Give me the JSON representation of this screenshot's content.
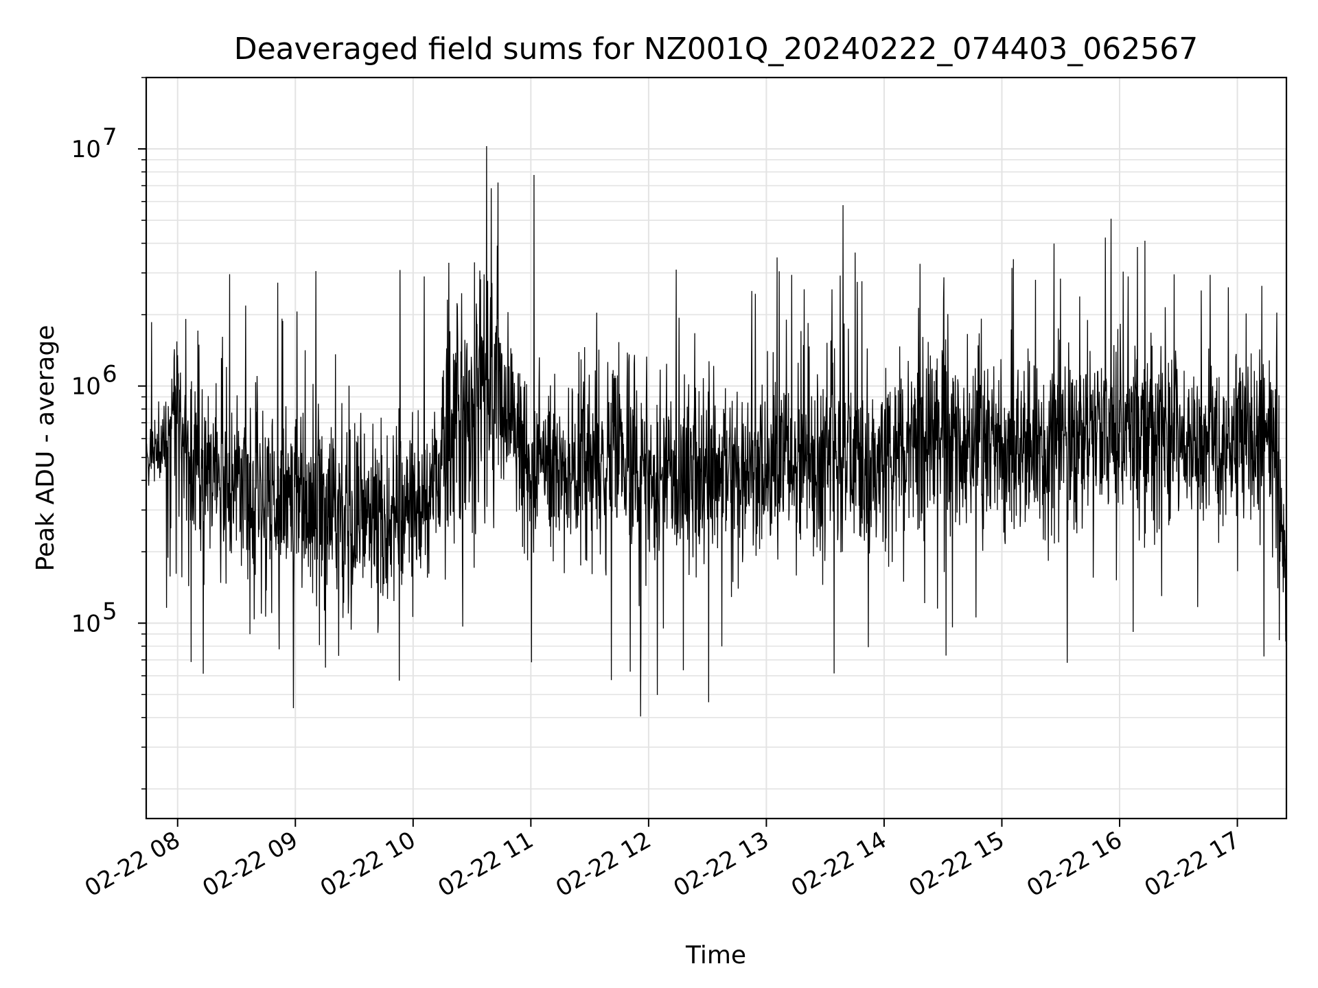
{
  "chart_data": {
    "type": "line",
    "title": "Deaveraged field sums for NZ001Q_20240222_074403_062567",
    "xlabel": "Time",
    "ylabel": "Peak ADU - average",
    "yscale": "log",
    "ylim": [
      15000,
      20000000
    ],
    "xlim": [
      "2024-02-22 07:44",
      "2024-02-22 17:25"
    ],
    "grid": true,
    "x_ticks": [
      {
        "value": "2024-02-22 08:00",
        "label": "02-22 08"
      },
      {
        "value": "2024-02-22 09:00",
        "label": "02-22 09"
      },
      {
        "value": "2024-02-22 10:00",
        "label": "02-22 10"
      },
      {
        "value": "2024-02-22 11:00",
        "label": "02-22 11"
      },
      {
        "value": "2024-02-22 12:00",
        "label": "02-22 12"
      },
      {
        "value": "2024-02-22 13:00",
        "label": "02-22 13"
      },
      {
        "value": "2024-02-22 14:00",
        "label": "02-22 14"
      },
      {
        "value": "2024-02-22 15:00",
        "label": "02-22 15"
      },
      {
        "value": "2024-02-22 16:00",
        "label": "02-22 16"
      },
      {
        "value": "2024-02-22 17:00",
        "label": "02-22 17"
      }
    ],
    "y_ticks": [
      {
        "value": 100000,
        "base": "10",
        "exp": "5"
      },
      {
        "value": 1000000,
        "base": "10",
        "exp": "6"
      },
      {
        "value": 10000000,
        "base": "10",
        "exp": "7"
      }
    ],
    "series": [
      {
        "color": "#000000",
        "x": [
          "2024-02-22 07:44",
          "2024-02-22 07:50",
          "2024-02-22 07:55",
          "2024-02-22 07:58",
          "2024-02-22 08:05",
          "2024-02-22 08:15",
          "2024-02-22 08:23",
          "2024-02-22 08:30",
          "2024-02-22 08:38",
          "2024-02-22 08:45",
          "2024-02-22 08:52",
          "2024-02-22 09:00",
          "2024-02-22 09:05",
          "2024-02-22 09:10",
          "2024-02-22 09:20",
          "2024-02-22 09:30",
          "2024-02-22 09:40",
          "2024-02-22 09:50",
          "2024-02-22 10:00",
          "2024-02-22 10:05",
          "2024-02-22 10:08",
          "2024-02-22 10:12",
          "2024-02-22 10:20",
          "2024-02-22 10:30",
          "2024-02-22 10:38",
          "2024-02-22 10:42",
          "2024-02-22 10:50",
          "2024-02-22 11:00",
          "2024-02-22 11:10",
          "2024-02-22 11:20",
          "2024-02-22 11:30",
          "2024-02-22 11:45",
          "2024-02-22 12:00",
          "2024-02-22 12:15",
          "2024-02-22 12:30",
          "2024-02-22 12:45",
          "2024-02-22 13:00",
          "2024-02-22 13:15",
          "2024-02-22 13:30",
          "2024-02-22 13:45",
          "2024-02-22 14:00",
          "2024-02-22 14:15",
          "2024-02-22 14:30",
          "2024-02-22 14:45",
          "2024-02-22 15:00",
          "2024-02-22 15:15",
          "2024-02-22 15:30",
          "2024-02-22 15:45",
          "2024-02-22 15:55",
          "2024-02-22 16:10",
          "2024-02-22 16:25",
          "2024-02-22 16:40",
          "2024-02-22 16:55",
          "2024-02-22 17:05",
          "2024-02-22 17:12",
          "2024-02-22 17:18",
          "2024-02-22 17:22",
          "2024-02-22 17:25"
        ],
        "values": [
          450000,
          550000,
          600000,
          800000,
          500000,
          450000,
          400000,
          420000,
          380000,
          350000,
          320000,
          350000,
          330000,
          320000,
          300000,
          280000,
          300000,
          280000,
          300000,
          320000,
          350000,
          400000,
          600000,
          800000,
          1000000,
          900000,
          700000,
          450000,
          460000,
          480000,
          500000,
          500000,
          450000,
          430000,
          420000,
          440000,
          450000,
          470000,
          500000,
          520000,
          530000,
          540000,
          550000,
          560000,
          540000,
          520000,
          560000,
          600000,
          650000,
          620000,
          650000,
          600000,
          550000,
          620000,
          700000,
          600000,
          250000,
          150000
        ]
      }
    ]
  }
}
